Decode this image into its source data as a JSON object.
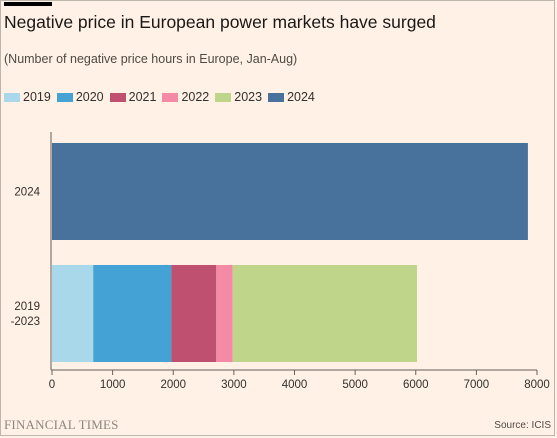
{
  "header": {
    "title": "Negative price in European power markets have surged",
    "subtitle": "(Number of negative price hours in Europe, Jan-Aug)"
  },
  "footer": {
    "brand": "FINANCIAL TIMES",
    "source": "Source: ICIS"
  },
  "colors": {
    "background": "#fff1e5",
    "2019": "#a8d8ea",
    "2020": "#44a3d4",
    "2021": "#c0506f",
    "2022": "#f48aa6",
    "2023": "#bfd58a",
    "2024": "#48729c"
  },
  "chart_data": {
    "type": "bar",
    "orientation": "horizontal",
    "stacked": true,
    "categories": [
      "2024",
      "2019\n-2023"
    ],
    "legend": [
      "2019",
      "2020",
      "2021",
      "2022",
      "2023",
      "2024"
    ],
    "legend_position": "top-left",
    "series": [
      {
        "name": "2019",
        "values": [
          0,
          680
        ]
      },
      {
        "name": "2020",
        "values": [
          0,
          1290
        ]
      },
      {
        "name": "2021",
        "values": [
          0,
          740
        ]
      },
      {
        "name": "2022",
        "values": [
          0,
          270
        ]
      },
      {
        "name": "2023",
        "values": [
          0,
          3040
        ]
      },
      {
        "name": "2024",
        "values": [
          7850,
          0
        ]
      }
    ],
    "xlim": [
      0,
      8000
    ],
    "xticks": [
      0,
      1000,
      2000,
      3000,
      4000,
      5000,
      6000,
      7000,
      8000
    ],
    "grid": false
  }
}
